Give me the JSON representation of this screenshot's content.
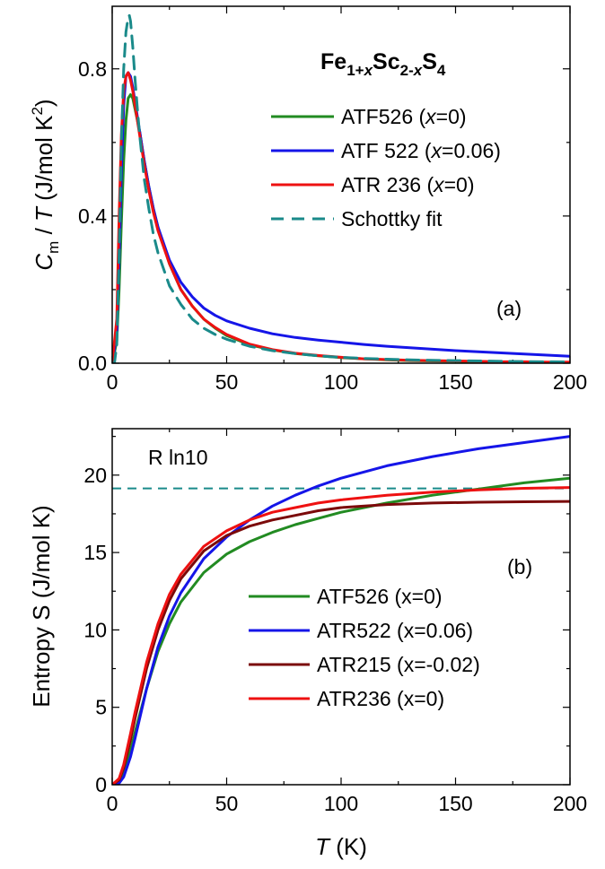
{
  "chart_data": [
    {
      "panel": "(a)",
      "type": "line",
      "title": {
        "base1": "Fe",
        "sub1": "1+",
        "subvar": "x",
        "base2": "Sc",
        "sub2": "2-",
        "subvar2": "x",
        "base3": "S",
        "sub3": "4"
      },
      "xlabel": "",
      "ylabel": {
        "sym": "C",
        "sub": "m",
        "slash": " / ",
        "sym2": "T",
        "units": " (J/mol K",
        "sup": "2",
        "close": ")"
      },
      "xlim": [
        0,
        200
      ],
      "ylim": [
        0,
        0.97
      ],
      "xticks": [
        0,
        50,
        100,
        150,
        200
      ],
      "yticks": [
        0.0,
        0.4,
        0.8
      ],
      "ytick_labels": [
        "0.0",
        "0.4",
        "0.8"
      ],
      "series": [
        {
          "name_pre": "ATF526 (",
          "name_var": "x",
          "name_post": "=0)",
          "color": "#228B22",
          "dash": "solid",
          "x": [
            0,
            2,
            3,
            4,
            5,
            6,
            7,
            8,
            9,
            10,
            12,
            14,
            16,
            18,
            20,
            25,
            30,
            35,
            40,
            45,
            50,
            60,
            70,
            80,
            90,
            100,
            110,
            120,
            130,
            140,
            150,
            160,
            170,
            180,
            190,
            200
          ],
          "y": [
            0,
            0.06,
            0.2,
            0.38,
            0.55,
            0.66,
            0.72,
            0.73,
            0.72,
            0.69,
            0.63,
            0.55,
            0.48,
            0.42,
            0.37,
            0.27,
            0.2,
            0.155,
            0.12,
            0.095,
            0.075,
            0.05,
            0.036,
            0.026,
            0.02,
            0.015,
            0.012,
            0.009,
            0.007,
            0.006,
            0.005,
            0.004,
            0.003,
            0.003,
            0.002,
            0.002
          ]
        },
        {
          "name_pre": "ATF 522 (",
          "name_var": "x",
          "name_post": "=0.06)",
          "color": "#1515E8",
          "dash": "solid",
          "x": [
            0,
            2,
            3,
            4,
            5,
            6,
            7,
            8,
            9,
            10,
            12,
            14,
            16,
            18,
            20,
            25,
            30,
            35,
            40,
            45,
            50,
            60,
            70,
            80,
            90,
            100,
            110,
            120,
            130,
            140,
            150,
            160,
            170,
            180,
            190,
            200
          ],
          "y": [
            0,
            0.08,
            0.28,
            0.52,
            0.7,
            0.78,
            0.79,
            0.78,
            0.75,
            0.71,
            0.63,
            0.55,
            0.48,
            0.42,
            0.37,
            0.28,
            0.22,
            0.18,
            0.15,
            0.13,
            0.115,
            0.095,
            0.08,
            0.07,
            0.063,
            0.057,
            0.051,
            0.046,
            0.042,
            0.038,
            0.034,
            0.031,
            0.028,
            0.025,
            0.022,
            0.019
          ]
        },
        {
          "name_pre": "ATR 236 (",
          "name_var": "x",
          "name_post": "=0)",
          "color": "#EE1111",
          "dash": "solid",
          "x": [
            0,
            2,
            3,
            4,
            5,
            6,
            7,
            8,
            9,
            10,
            12,
            14,
            16,
            18,
            20,
            25,
            30,
            35,
            40,
            45,
            50,
            60,
            70,
            80,
            90,
            100,
            110,
            120,
            130,
            140,
            150,
            160,
            170,
            180,
            190,
            200
          ],
          "y": [
            0,
            0.12,
            0.4,
            0.62,
            0.74,
            0.78,
            0.79,
            0.77,
            0.74,
            0.7,
            0.62,
            0.54,
            0.47,
            0.41,
            0.36,
            0.27,
            0.2,
            0.155,
            0.12,
            0.097,
            0.078,
            0.052,
            0.037,
            0.027,
            0.021,
            0.016,
            0.012,
            0.01,
            0.008,
            0.007,
            0.006,
            0.005,
            0.004,
            0.004,
            0.003,
            0.003
          ]
        },
        {
          "name_pre": "Schottky fit",
          "name_var": "",
          "name_post": "",
          "color": "#1A8A8A",
          "dash": "dashed",
          "x": [
            0,
            1,
            2,
            3,
            4,
            5,
            6,
            7,
            7.5,
            8,
            9,
            10,
            11,
            12,
            14,
            16,
            18,
            20,
            25,
            30,
            35,
            40,
            45,
            50,
            60,
            70,
            80,
            90,
            100,
            110,
            120,
            130,
            140,
            150,
            160,
            170,
            180,
            190,
            200
          ],
          "y": [
            0,
            0.0,
            0.05,
            0.3,
            0.6,
            0.8,
            0.9,
            0.94,
            0.945,
            0.93,
            0.86,
            0.77,
            0.69,
            0.62,
            0.5,
            0.42,
            0.35,
            0.3,
            0.21,
            0.16,
            0.12,
            0.095,
            0.078,
            0.065,
            0.046,
            0.034,
            0.026,
            0.02,
            0.016,
            0.013,
            0.011,
            0.009,
            0.008,
            0.007,
            0.006,
            0.005,
            0.0045,
            0.004,
            0.0035
          ]
        }
      ],
      "annotation": "(a)",
      "legend_position": "upper right"
    },
    {
      "panel": "(b)",
      "type": "line",
      "xlabel": {
        "sym": "T",
        "units": " (K)"
      },
      "ylabel": "Entropy S (J/mol K)",
      "xlim": [
        0,
        200
      ],
      "ylim": [
        0,
        23
      ],
      "xticks": [
        0,
        50,
        100,
        150,
        200
      ],
      "yticks": [
        0,
        5,
        10,
        15,
        20
      ],
      "series": [
        {
          "name": "ATF526 (x=0)",
          "color": "#228B22",
          "dash": "solid",
          "x": [
            0,
            3,
            5,
            8,
            10,
            15,
            20,
            25,
            30,
            40,
            50,
            60,
            70,
            80,
            90,
            100,
            120,
            140,
            160,
            180,
            200
          ],
          "y": [
            0,
            0.2,
            0.8,
            2.2,
            3.4,
            6.2,
            8.6,
            10.4,
            11.8,
            13.7,
            14.9,
            15.7,
            16.3,
            16.8,
            17.2,
            17.6,
            18.2,
            18.7,
            19.1,
            19.5,
            19.8
          ]
        },
        {
          "name": "ATR522 (x=0.06)",
          "color": "#1515E8",
          "dash": "solid",
          "x": [
            0,
            3,
            5,
            8,
            10,
            15,
            20,
            25,
            30,
            40,
            50,
            60,
            70,
            80,
            90,
            100,
            120,
            140,
            160,
            180,
            200
          ],
          "y": [
            0,
            0.1,
            0.5,
            1.8,
            3.0,
            6.2,
            8.9,
            10.9,
            12.4,
            14.6,
            16.0,
            17.1,
            18.0,
            18.7,
            19.3,
            19.8,
            20.6,
            21.2,
            21.7,
            22.1,
            22.5
          ]
        },
        {
          "name": "ATR215 (x=-0.02)",
          "color": "#7B0A0A",
          "dash": "solid",
          "x": [
            0,
            3,
            5,
            8,
            10,
            15,
            20,
            25,
            30,
            40,
            50,
            60,
            70,
            80,
            90,
            100,
            120,
            140,
            160,
            180,
            200
          ],
          "y": [
            0,
            0.3,
            1.1,
            2.9,
            4.3,
            7.5,
            10.0,
            11.9,
            13.3,
            15.1,
            16.1,
            16.7,
            17.1,
            17.4,
            17.7,
            17.9,
            18.1,
            18.2,
            18.25,
            18.28,
            18.3
          ]
        },
        {
          "name": "ATR236 (x=0)",
          "color": "#EE1111",
          "dash": "solid",
          "x": [
            0,
            3,
            5,
            8,
            10,
            15,
            20,
            25,
            30,
            40,
            50,
            60,
            70,
            80,
            90,
            100,
            120,
            140,
            160,
            180,
            200
          ],
          "y": [
            0,
            0.4,
            1.3,
            3.3,
            4.7,
            7.9,
            10.4,
            12.3,
            13.6,
            15.4,
            16.4,
            17.1,
            17.6,
            17.9,
            18.2,
            18.4,
            18.7,
            18.9,
            19.05,
            19.15,
            19.2
          ]
        }
      ],
      "reference_line": {
        "label": "R ln10",
        "y": 19.14,
        "color": "#1A8A8A",
        "dash": "dashed"
      },
      "annotation": "(b)",
      "legend_position": "lower right"
    }
  ]
}
